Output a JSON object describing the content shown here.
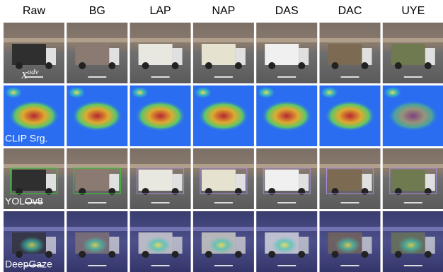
{
  "columns": [
    "Raw",
    "BG",
    "LAP",
    "NAP",
    "DAS",
    "DAC",
    "UYE"
  ],
  "rows": [
    {
      "label": "X",
      "superscript": "adv"
    },
    {
      "label": "CLIP Srg."
    },
    {
      "label": "YOLOv8"
    },
    {
      "label": "DeepGaze"
    }
  ]
}
